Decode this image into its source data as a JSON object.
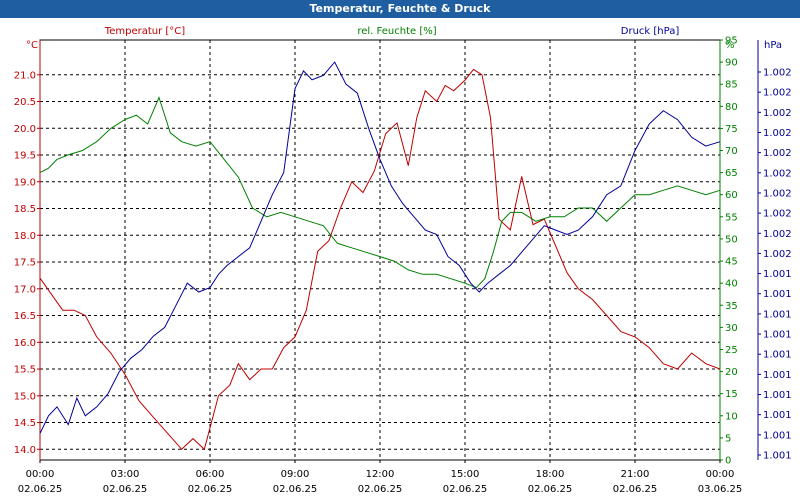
{
  "chart_data": {
    "type": "line",
    "title": "Temperatur, Feuchte & Druck",
    "x_ticks": [
      {
        "time": "00:00",
        "date": "02.06.25"
      },
      {
        "time": "03:00",
        "date": "02.06.25"
      },
      {
        "time": "06:00",
        "date": "02.06.25"
      },
      {
        "time": "09:00",
        "date": "02.06.25"
      },
      {
        "time": "12:00",
        "date": "02.06.25"
      },
      {
        "time": "15:00",
        "date": "02.06.25"
      },
      {
        "time": "18:00",
        "date": "02.06.25"
      },
      {
        "time": "21:00",
        "date": "02.06.25"
      },
      {
        "time": "00:00",
        "date": "03.06.25"
      }
    ],
    "x_range_hours": [
      0,
      24
    ],
    "grid": true,
    "axes": {
      "left": {
        "unit": "°C",
        "ylim": [
          13.8,
          21.65
        ],
        "ticks": [
          "14.0",
          "14.5",
          "15.0",
          "15.5",
          "16.0",
          "16.5",
          "17.0",
          "17.5",
          "18.0",
          "18.5",
          "19.0",
          "19.5",
          "20.0",
          "20.5",
          "21.0"
        ],
        "tick_values": [
          14.0,
          14.5,
          15.0,
          15.5,
          16.0,
          16.5,
          17.0,
          17.5,
          18.0,
          18.5,
          19.0,
          19.5,
          20.0,
          20.5,
          21.0
        ],
        "color": "#c00000"
      },
      "right": {
        "unit": "%",
        "ylim": [
          0,
          95
        ],
        "ticks": [
          "0",
          "5",
          "10",
          "15",
          "20",
          "25",
          "30",
          "35",
          "40",
          "45",
          "50",
          "55",
          "60",
          "65",
          "70",
          "75",
          "80",
          "85",
          "90",
          "95"
        ],
        "tick_values": [
          0,
          5,
          10,
          15,
          20,
          25,
          30,
          35,
          40,
          45,
          50,
          55,
          60,
          65,
          70,
          75,
          80,
          85,
          90,
          95
        ],
        "color": "#008000"
      },
      "far_right": {
        "unit": "hPa",
        "ticks": [
          "1.002",
          "1.002",
          "1.002",
          "1.002",
          "1.002",
          "1.002",
          "1.002",
          "1.002",
          "1.002",
          "1.002",
          "1.001",
          "1.001",
          "1.001",
          "1.001",
          "1.001",
          "1.001",
          "1.001",
          "1.001",
          "1.001",
          "1.001"
        ],
        "color": "#000099"
      }
    },
    "series": [
      {
        "name": "Temperatur [°C]",
        "color": "#c00000",
        "axis": "left",
        "x": [
          0,
          0.4,
          0.8,
          1.2,
          1.6,
          2.0,
          2.5,
          3.0,
          3.5,
          4.0,
          4.5,
          5.0,
          5.4,
          5.8,
          6.0,
          6.3,
          6.7,
          7.0,
          7.4,
          7.8,
          8.2,
          8.6,
          9.0,
          9.4,
          9.8,
          10.2,
          10.6,
          11.0,
          11.4,
          11.8,
          12.2,
          12.6,
          13.0,
          13.3,
          13.6,
          14.0,
          14.3,
          14.6,
          15.0,
          15.3,
          15.6,
          15.9,
          16.2,
          16.6,
          17.0,
          17.4,
          17.8,
          18.2,
          18.6,
          19.0,
          19.5,
          20.0,
          20.5,
          21.0,
          21.5,
          22.0,
          22.5,
          23.0,
          23.5,
          24.0
        ],
        "values": [
          17.2,
          16.9,
          16.6,
          16.6,
          16.5,
          16.1,
          15.8,
          15.4,
          14.9,
          14.6,
          14.3,
          14.0,
          14.2,
          14.0,
          14.4,
          15.0,
          15.2,
          15.6,
          15.3,
          15.5,
          15.5,
          15.9,
          16.1,
          16.6,
          17.7,
          17.9,
          18.5,
          19.0,
          18.8,
          19.2,
          19.9,
          20.1,
          19.3,
          20.2,
          20.7,
          20.5,
          20.8,
          20.7,
          20.9,
          21.1,
          21.0,
          20.2,
          18.3,
          18.1,
          19.1,
          18.2,
          18.3,
          17.8,
          17.3,
          17.0,
          16.8,
          16.5,
          16.2,
          16.1,
          15.9,
          15.6,
          15.5,
          15.8,
          15.6,
          15.5
        ]
      },
      {
        "name": "rel. Feuchte [%]",
        "color": "#008000",
        "axis": "right",
        "x": [
          0,
          0.3,
          0.6,
          1.0,
          1.5,
          2.0,
          2.5,
          3.0,
          3.4,
          3.8,
          4.2,
          4.6,
          5.0,
          5.5,
          6.0,
          6.5,
          7.0,
          7.5,
          8.0,
          8.5,
          9.0,
          9.5,
          10.0,
          10.5,
          11.0,
          11.5,
          12.0,
          12.5,
          13.0,
          13.5,
          14.0,
          14.5,
          15.0,
          15.4,
          15.7,
          16.0,
          16.3,
          16.6,
          17.0,
          17.5,
          18.0,
          18.5,
          19.0,
          19.5,
          20.0,
          20.5,
          21.0,
          21.5,
          22.0,
          22.5,
          23.0,
          23.5,
          24.0
        ],
        "values": [
          65,
          66,
          68,
          69,
          70,
          72,
          75,
          77,
          78,
          76,
          82,
          74,
          72,
          71,
          72,
          68,
          64,
          57,
          55,
          56,
          55,
          54,
          53,
          49,
          48,
          47,
          46,
          45,
          43,
          42,
          42,
          41,
          40,
          39,
          41,
          47,
          54,
          56,
          56,
          54,
          55,
          55,
          57,
          57,
          54,
          57,
          60,
          60,
          61,
          62,
          61,
          60,
          61
        ]
      },
      {
        "name": "Druck [hPa]",
        "color": "#000099",
        "axis": "right",
        "x": [
          0,
          0.3,
          0.6,
          1.0,
          1.3,
          1.6,
          2.0,
          2.4,
          2.8,
          3.2,
          3.6,
          4.0,
          4.4,
          4.8,
          5.2,
          5.6,
          6.0,
          6.3,
          6.6,
          7.0,
          7.4,
          7.8,
          8.2,
          8.6,
          9.0,
          9.3,
          9.6,
          10.0,
          10.4,
          10.8,
          11.2,
          11.6,
          12.0,
          12.4,
          12.8,
          13.2,
          13.6,
          14.0,
          14.4,
          14.8,
          15.2,
          15.5,
          15.8,
          16.2,
          16.6,
          17.0,
          17.4,
          17.8,
          18.2,
          18.6,
          19.0,
          19.5,
          20.0,
          20.5,
          21.0,
          21.5,
          22.0,
          22.5,
          23.0,
          23.5,
          24.0
        ],
        "values": [
          6,
          10,
          12,
          8,
          14,
          10,
          12,
          15,
          20,
          23,
          25,
          28,
          30,
          35,
          40,
          38,
          39,
          42,
          44,
          46,
          48,
          54,
          60,
          65,
          84,
          88,
          86,
          87,
          90,
          85,
          83,
          75,
          68,
          62,
          58,
          55,
          52,
          51,
          46,
          44,
          40,
          38,
          40,
          42,
          44,
          47,
          50,
          53,
          52,
          51,
          52,
          55,
          60,
          62,
          70,
          76,
          79,
          77,
          73,
          71,
          72
        ]
      }
    ]
  }
}
